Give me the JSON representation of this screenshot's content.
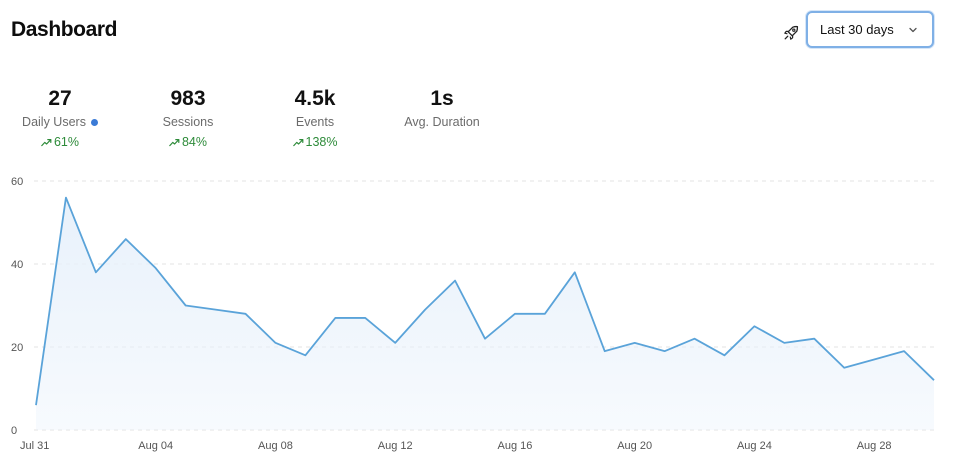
{
  "header": {
    "title": "Dashboard",
    "share_icon": "rocket-icon",
    "range_selector": {
      "selected": "Last 30 days",
      "icon": "chevron-down-icon"
    }
  },
  "metrics": [
    {
      "value": "27",
      "label": "Daily Users",
      "change": "61%",
      "live_dot": true
    },
    {
      "value": "983",
      "label": "Sessions",
      "change": "84%"
    },
    {
      "value": "4.5k",
      "label": "Events",
      "change": "138%"
    },
    {
      "value": "1s",
      "label": "Avg. Duration",
      "change": ""
    }
  ],
  "colors": {
    "line": "#5aa3d9",
    "area": "#e8f1fb",
    "positive_change": "#2e8b3a",
    "live_dot": "#3b7bd6",
    "select_border": "#7fb0e6"
  },
  "chart_data": {
    "type": "area",
    "x": [
      "2024-07-31",
      "2024-08-01",
      "2024-08-02",
      "2024-08-03",
      "2024-08-04",
      "2024-08-05",
      "2024-08-06",
      "2024-08-07",
      "2024-08-08",
      "2024-08-09",
      "2024-08-10",
      "2024-08-11",
      "2024-08-12",
      "2024-08-13",
      "2024-08-14",
      "2024-08-15",
      "2024-08-16",
      "2024-08-17",
      "2024-08-18",
      "2024-08-19",
      "2024-08-20",
      "2024-08-21",
      "2024-08-22",
      "2024-08-23",
      "2024-08-24",
      "2024-08-25",
      "2024-08-26",
      "2024-08-27",
      "2024-08-28",
      "2024-08-29",
      "2024-08-30"
    ],
    "series": [
      {
        "values": [
          6,
          56,
          38,
          46,
          39,
          30,
          29,
          28,
          21,
          18,
          27,
          27,
          21,
          29,
          36,
          22,
          28,
          28,
          38,
          19,
          21,
          19,
          22,
          18,
          25,
          21,
          22,
          15,
          17,
          19,
          12
        ]
      }
    ],
    "ylim": [
      0,
      60
    ],
    "y_ticks": [
      "0",
      "20",
      "40",
      "60"
    ],
    "x_tick_labels": [
      "Jul 31",
      "Aug 04",
      "Aug 08",
      "Aug 12",
      "Aug 16",
      "Aug 20",
      "Aug 24",
      "Aug 28"
    ],
    "x_tick_indices": [
      0,
      4,
      8,
      12,
      16,
      20,
      24,
      28
    ],
    "grid": "horizontal-dashed",
    "legend": "none"
  }
}
